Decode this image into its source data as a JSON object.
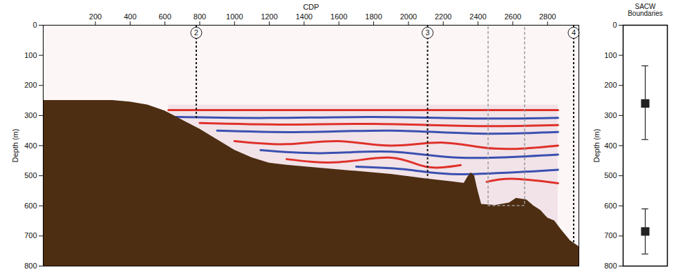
{
  "chart_data": [
    {
      "type": "area",
      "xlabel": "CDP",
      "ylabel": "Depth (m)",
      "xlim": [
        -100,
        2980
      ],
      "xticks": [
        200,
        400,
        600,
        800,
        1000,
        1200,
        1400,
        1600,
        1800,
        2000,
        2200,
        2400,
        2600,
        2800
      ],
      "ylim": [
        0,
        800
      ],
      "yticks": [
        0,
        100,
        200,
        300,
        400,
        500,
        600,
        700,
        800
      ],
      "seafloor": {
        "color": "#4e2e12",
        "cdp": [
          -100,
          300,
          400,
          500,
          600,
          700,
          800,
          900,
          1000,
          1100,
          1200,
          1300,
          1500,
          1700,
          1900,
          2100,
          2250,
          2320,
          2340,
          2360,
          2380,
          2395,
          2420,
          2500,
          2580,
          2620,
          2680,
          2720,
          2760,
          2800,
          2840,
          2880,
          2930,
          2980
        ],
        "depth": [
          250,
          250,
          255,
          265,
          285,
          315,
          345,
          380,
          415,
          440,
          458,
          465,
          475,
          485,
          495,
          510,
          520,
          525,
          505,
          490,
          500,
          540,
          595,
          598,
          590,
          575,
          580,
          600,
          615,
          640,
          650,
          680,
          715,
          735
        ]
      },
      "section": {
        "color": "#f1e3e8",
        "cdp": [
          620,
          2860
        ],
        "depth": 265
      },
      "reflectors": [
        {
          "color": "#e0302a",
          "cdp": [
            620,
            1500,
            2860
          ],
          "depth": [
            282,
            282,
            282
          ]
        },
        {
          "color": "#3a4fb0",
          "cdp": [
            660,
            1200,
            1800,
            2400,
            2860
          ],
          "depth": [
            305,
            308,
            305,
            310,
            308
          ]
        },
        {
          "color": "#e0302a",
          "cdp": [
            800,
            1300,
            1800,
            2400,
            2860
          ],
          "depth": [
            325,
            330,
            328,
            335,
            332
          ]
        },
        {
          "color": "#3a4fb0",
          "cdp": [
            900,
            1400,
            1900,
            2400,
            2860
          ],
          "depth": [
            350,
            355,
            350,
            360,
            355
          ]
        },
        {
          "color": "#e0302a",
          "cdp": [
            1000,
            1300,
            1600,
            1900,
            2200,
            2500,
            2860
          ],
          "depth": [
            385,
            395,
            385,
            400,
            390,
            410,
            400
          ]
        },
        {
          "color": "#3a4fb0",
          "cdp": [
            1150,
            1500,
            1900,
            2300,
            2860
          ],
          "depth": [
            415,
            425,
            420,
            440,
            430
          ]
        },
        {
          "color": "#e0302a",
          "cdp": [
            1300,
            1600,
            1900,
            2100,
            2300
          ],
          "depth": [
            445,
            455,
            440,
            470,
            465
          ]
        },
        {
          "color": "#3a4fb0",
          "cdp": [
            1700,
            2000,
            2300,
            2860
          ],
          "depth": [
            470,
            480,
            495,
            480
          ]
        },
        {
          "color": "#e0302a",
          "cdp": [
            2450,
            2600,
            2860
          ],
          "depth": [
            520,
            510,
            525
          ]
        }
      ],
      "markers": [
        {
          "label": "2",
          "cdp": 780,
          "depth": 310
        },
        {
          "label": "3",
          "cdp": 2110,
          "depth": 510
        },
        {
          "label": "4",
          "cdp": 2950,
          "depth": 725
        }
      ],
      "box": {
        "color": "#999999",
        "cdp": [
          2460,
          2670
        ],
        "depth": [
          0,
          600
        ]
      }
    },
    {
      "type": "scatter",
      "title": "SACW Boundaries",
      "ylabel": "Depth (m)",
      "ylim": [
        0,
        800
      ],
      "yticks": [
        0,
        100,
        200,
        300,
        400,
        500,
        600,
        700,
        800
      ],
      "tick_labels": "y",
      "color": "#222222",
      "marker": "square",
      "values": [
        260,
        685
      ],
      "error_low": [
        135,
        610
      ],
      "error_high": [
        380,
        760
      ]
    }
  ]
}
